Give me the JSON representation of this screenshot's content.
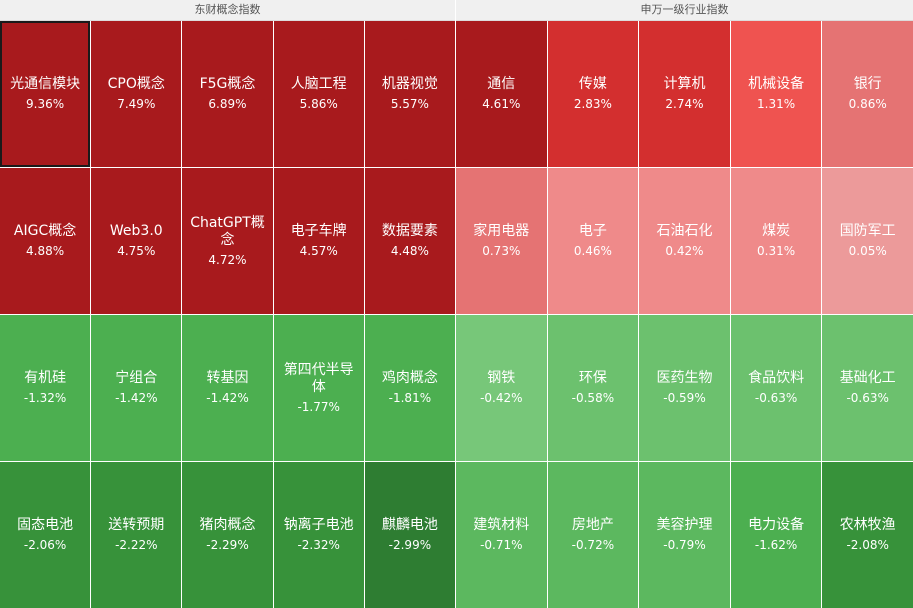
{
  "left": {
    "title": "东财概念指数",
    "cells": [
      {
        "name": "光通信模块",
        "value": "9.36%",
        "color": "#a81a1d",
        "selected": true
      },
      {
        "name": "CPO概念",
        "value": "7.49%",
        "color": "#a81a1d"
      },
      {
        "name": "F5G概念",
        "value": "6.89%",
        "color": "#a81a1d"
      },
      {
        "name": "人脑工程",
        "value": "5.86%",
        "color": "#a81a1d"
      },
      {
        "name": "机器视觉",
        "value": "5.57%",
        "color": "#a81a1d"
      },
      {
        "name": "AIGC概念",
        "value": "4.88%",
        "color": "#a81a1d"
      },
      {
        "name": "Web3.0",
        "value": "4.75%",
        "color": "#a81a1d"
      },
      {
        "name": "ChatGPT概念",
        "value": "4.72%",
        "color": "#a81a1d"
      },
      {
        "name": "电子车牌",
        "value": "4.57%",
        "color": "#a81a1d"
      },
      {
        "name": "数据要素",
        "value": "4.48%",
        "color": "#a81a1d"
      },
      {
        "name": "有机硅",
        "value": "-1.32%",
        "color": "#4caf50"
      },
      {
        "name": "宁组合",
        "value": "-1.42%",
        "color": "#4caf50"
      },
      {
        "name": "转基因",
        "value": "-1.42%",
        "color": "#4caf50"
      },
      {
        "name": "第四代半导体",
        "value": "-1.77%",
        "color": "#4caf50"
      },
      {
        "name": "鸡肉概念",
        "value": "-1.81%",
        "color": "#4caf50"
      },
      {
        "name": "固态电池",
        "value": "-2.06%",
        "color": "#37923a"
      },
      {
        "name": "送转预期",
        "value": "-2.22%",
        "color": "#37923a"
      },
      {
        "name": "猪肉概念",
        "value": "-2.29%",
        "color": "#37923a"
      },
      {
        "name": "钠离子电池",
        "value": "-2.32%",
        "color": "#37923a"
      },
      {
        "name": "麒麟电池",
        "value": "-2.99%",
        "color": "#2e7d32"
      }
    ]
  },
  "right": {
    "title": "申万一级行业指数",
    "cells": [
      {
        "name": "通信",
        "value": "4.61%",
        "color": "#a81a1d"
      },
      {
        "name": "传媒",
        "value": "2.83%",
        "color": "#d32f2f"
      },
      {
        "name": "计算机",
        "value": "2.74%",
        "color": "#d32f2f"
      },
      {
        "name": "机械设备",
        "value": "1.31%",
        "color": "#ef5350"
      },
      {
        "name": "银行",
        "value": "0.86%",
        "color": "#e57373"
      },
      {
        "name": "家用电器",
        "value": "0.73%",
        "color": "#e57373"
      },
      {
        "name": "电子",
        "value": "0.46%",
        "color": "#ef8a8a"
      },
      {
        "name": "石油石化",
        "value": "0.42%",
        "color": "#ef8a8a"
      },
      {
        "name": "煤炭",
        "value": "0.31%",
        "color": "#ef8a8a"
      },
      {
        "name": "国防军工",
        "value": "0.05%",
        "color": "#ec9a9a"
      },
      {
        "name": "钢铁",
        "value": "-0.42%",
        "color": "#77c779"
      },
      {
        "name": "环保",
        "value": "-0.58%",
        "color": "#6cc16e"
      },
      {
        "name": "医药生物",
        "value": "-0.59%",
        "color": "#6cc16e"
      },
      {
        "name": "食品饮料",
        "value": "-0.63%",
        "color": "#6cc16e"
      },
      {
        "name": "基础化工",
        "value": "-0.63%",
        "color": "#6cc16e"
      },
      {
        "name": "建筑材料",
        "value": "-0.71%",
        "color": "#5cb85f"
      },
      {
        "name": "房地产",
        "value": "-0.72%",
        "color": "#5cb85f"
      },
      {
        "name": "美容护理",
        "value": "-0.79%",
        "color": "#5cb85f"
      },
      {
        "name": "电力设备",
        "value": "-1.62%",
        "color": "#4caf50"
      },
      {
        "name": "农林牧渔",
        "value": "-2.08%",
        "color": "#37923a"
      }
    ]
  }
}
